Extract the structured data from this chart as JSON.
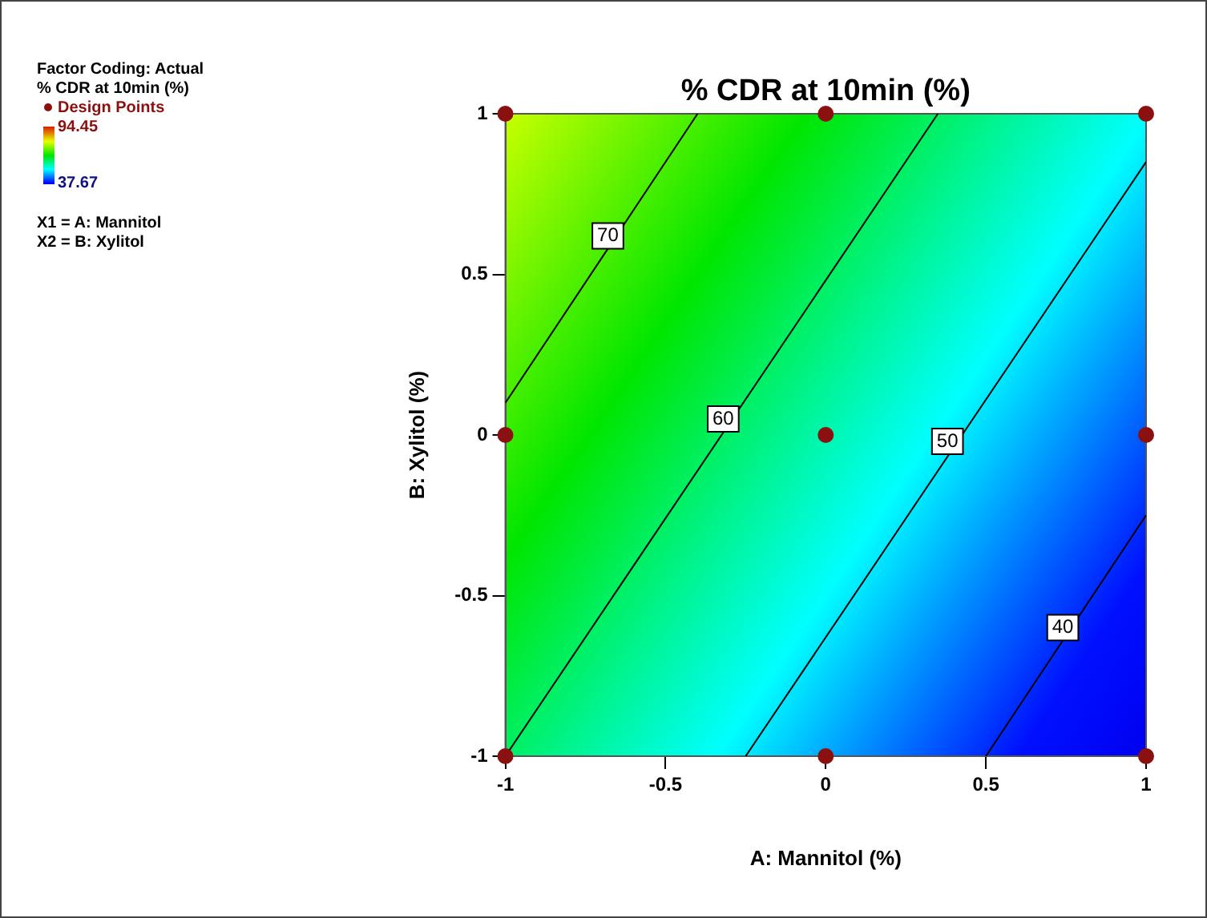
{
  "chart_data": {
    "type": "scatter",
    "title": "% CDR at 10min (%)",
    "xlabel": "A: Mannitol (%)",
    "ylabel": "B: Xylitol (%)",
    "clabel": "% CDR at 10min (%)",
    "xlim": [
      -1,
      1
    ],
    "xticks": [
      -1,
      -0.5,
      0,
      0.5,
      1
    ],
    "ylim": [
      -1,
      1
    ],
    "yticks": [
      -1,
      -0.5,
      0,
      0.5,
      1
    ],
    "clim": [
      37.67,
      94.45
    ],
    "cticks": [
      94.45,
      37.67
    ],
    "series": [
      {
        "type": "line",
        "color": "#000000",
        "x": [
          -1,
          -0.4
        ],
        "values": [
          0.1,
          1
        ]
      },
      {
        "type": "line",
        "color": "#000000",
        "x": [
          -1,
          0.35
        ],
        "values": [
          -1,
          1
        ]
      },
      {
        "type": "line",
        "color": "#000000",
        "x": [
          -0.25,
          1
        ],
        "values": [
          -1,
          0.85
        ]
      },
      {
        "type": "line",
        "color": "#000000",
        "x": [
          0.5,
          1
        ],
        "values": [
          -1,
          -0.25
        ]
      },
      {
        "name": "Design Points",
        "color": "#8b1111",
        "marker": "circle",
        "x": [
          -1,
          0,
          1,
          -1,
          0,
          1,
          -1,
          0,
          1
        ],
        "values": [
          1,
          1,
          1,
          0,
          0,
          0,
          -1,
          -1,
          -1
        ]
      }
    ],
    "annotations": [
      "Factor Coding: Actual",
      "X1 = A: Mannitol",
      "X2 = B: Xylitol",
      {
        "text": "70",
        "x": -0.68,
        "y": 0.62
      },
      {
        "text": "60",
        "x": -0.32,
        "y": 0.05
      },
      {
        "text": "50",
        "x": 0.38,
        "y": -0.02
      },
      {
        "text": "40",
        "x": 0.74,
        "y": -0.6
      }
    ],
    "legend": "top left",
    "grid": false
  }
}
